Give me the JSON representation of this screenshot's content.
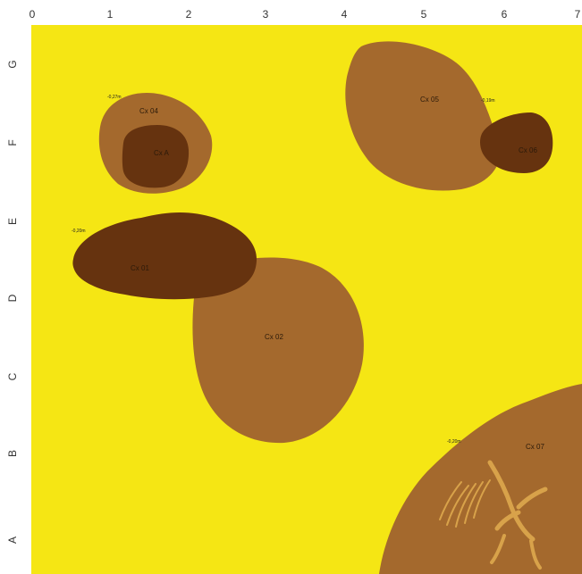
{
  "colors": {
    "background": "#F5E614",
    "light_fill": "#A4692D",
    "dark_fill": "#66330F",
    "bone": "#D8A24A"
  },
  "axes": {
    "x_ticks": [
      "0",
      "1",
      "2",
      "3",
      "4",
      "5",
      "6",
      "7"
    ],
    "y_ticks": [
      "G",
      "F",
      "E",
      "D",
      "C",
      "B",
      "A"
    ]
  },
  "features": {
    "cx01": {
      "label": "Cx 01",
      "depth": "-0,20m"
    },
    "cx02": {
      "label": "Cx 02"
    },
    "cx04": {
      "label": "Cx 04",
      "depth": "-0,27m"
    },
    "cx04_inner": {
      "label": "Cx A"
    },
    "cx05": {
      "label": "Cx 05",
      "depth": "-0,19m"
    },
    "cx06": {
      "label": "Cx 06"
    },
    "cx07": {
      "label": "Cx 07",
      "depth": "-0,20m"
    }
  }
}
